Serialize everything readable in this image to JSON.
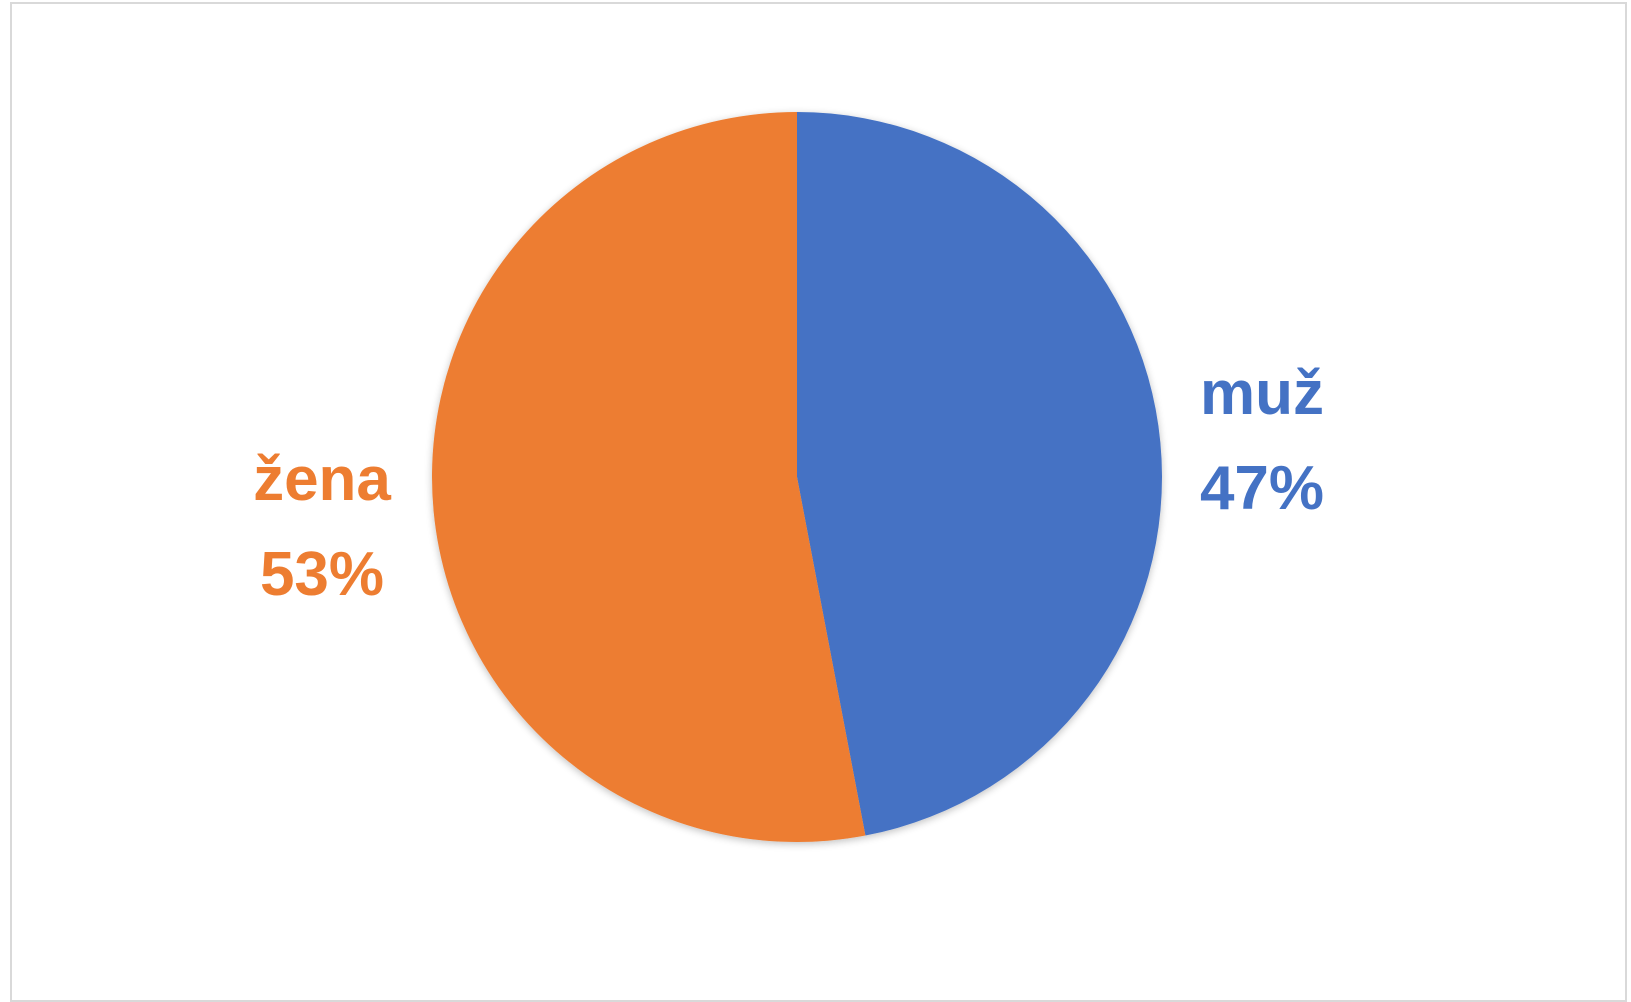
{
  "chart_data": {
    "type": "pie",
    "title": "",
    "slices": [
      {
        "label": "muž",
        "value": 47,
        "display": "47%",
        "color": "#4472C4"
      },
      {
        "label": "žena",
        "value": 53,
        "display": "53%",
        "color": "#ED7D31"
      }
    ],
    "start_angle_deg": 0,
    "direction": "clockwise",
    "legend": "none",
    "data_labels": "outside, category and percentage"
  }
}
